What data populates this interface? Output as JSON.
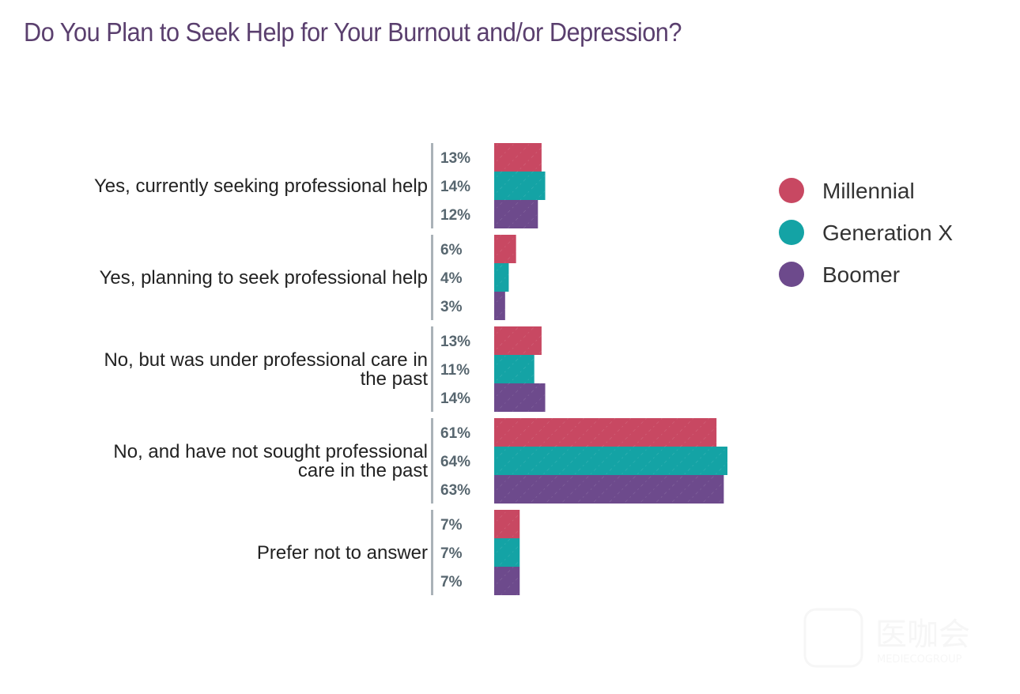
{
  "chart_data": {
    "type": "bar",
    "orientation": "horizontal",
    "title": "Do You Plan to Seek Help for Your Burnout and/or Depression?",
    "categories": [
      "Yes, currently seeking professional help",
      "Yes, planning to seek professional help",
      "No, but was under professional care in the past",
      "No, and have not sought professional care in the past",
      "Prefer not to answer"
    ],
    "category_lines": [
      [
        "Yes, currently seeking professional help"
      ],
      [
        "Yes, planning to seek professional help"
      ],
      [
        "No, but was under professional care in",
        "the past"
      ],
      [
        "No, and have not sought professional",
        "care in the past"
      ],
      [
        "Prefer not to answer"
      ]
    ],
    "series": [
      {
        "name": "Millennial",
        "color": "#c84862",
        "values": [
          13,
          6,
          13,
          61,
          7
        ]
      },
      {
        "name": "Generation X",
        "color": "#14a3a5",
        "values": [
          14,
          4,
          11,
          64,
          7
        ]
      },
      {
        "name": "Boomer",
        "color": "#6d4a8c",
        "values": [
          12,
          3,
          14,
          63,
          7
        ]
      }
    ],
    "value_suffix": "%",
    "xlim": [
      0,
      64
    ],
    "grid": false,
    "legend_position": "right"
  },
  "watermark": {
    "text": "医咖会",
    "subtext": "MEDIECOGROUP"
  }
}
